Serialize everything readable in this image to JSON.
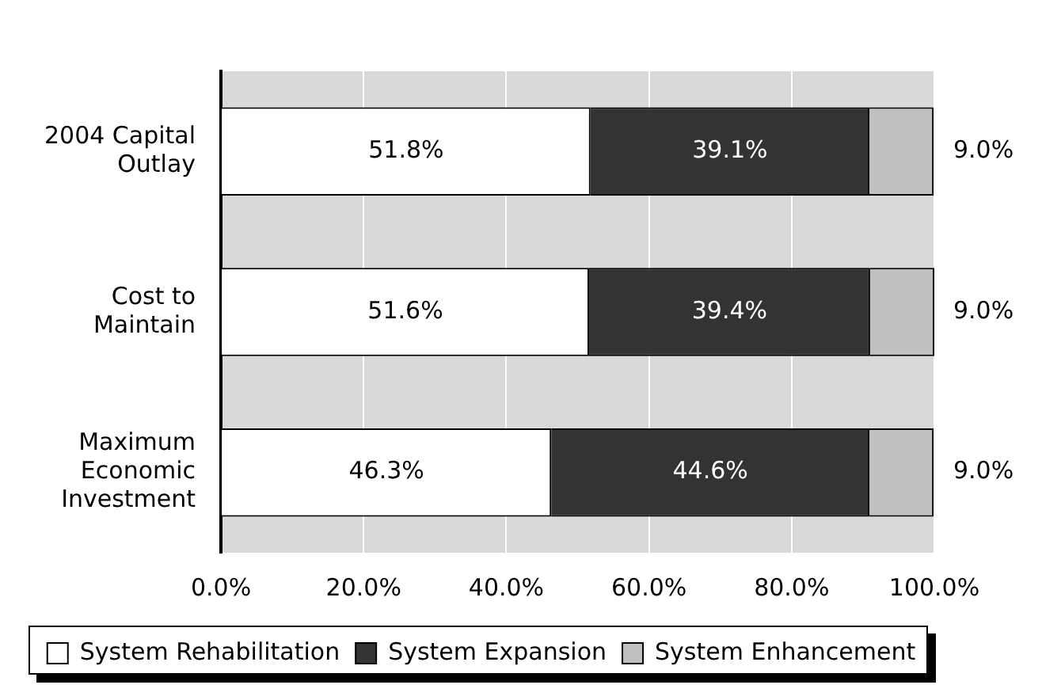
{
  "chart_data": {
    "type": "bar",
    "orientation": "horizontal",
    "stacked": true,
    "categories": [
      "2004 Capital Outlay",
      "Cost to Maintain",
      "Maximum Economic Investment"
    ],
    "series": [
      {
        "name": "System Rehabilitation",
        "color": "#ffffff",
        "values": [
          51.8,
          51.6,
          46.3
        ],
        "value_labels": [
          "51.8%",
          "51.6%",
          "46.3%"
        ]
      },
      {
        "name": "System Expansion",
        "color": "#333333",
        "values": [
          39.1,
          39.4,
          44.6
        ],
        "value_labels": [
          "39.1%",
          "39.4%",
          "44.6%"
        ]
      },
      {
        "name": "System Enhancement",
        "color": "#c0c0c0",
        "values": [
          9.0,
          9.0,
          9.0
        ],
        "value_labels": [
          "9.0%",
          "9.0%",
          "9.0%"
        ]
      }
    ],
    "xlim": [
      0,
      100
    ],
    "xticks": [
      {
        "value": 0,
        "label": "0.0%"
      },
      {
        "value": 20,
        "label": "20.0%"
      },
      {
        "value": 40,
        "label": "40.0%"
      },
      {
        "value": 60,
        "label": "60.0%"
      },
      {
        "value": 80,
        "label": "80.0%"
      },
      {
        "value": 100,
        "label": "100.0%"
      }
    ],
    "grid": "x",
    "legend": "bottom"
  }
}
